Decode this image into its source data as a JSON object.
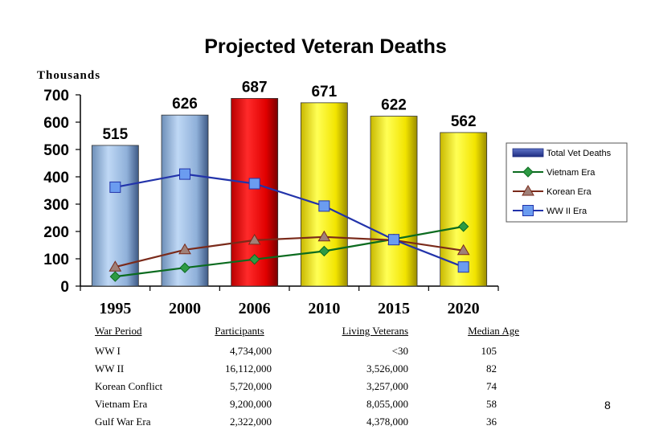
{
  "page_number": "8",
  "chart_data": {
    "type": "bar",
    "title": "Projected Veteran Deaths",
    "ylabel": "Thousands",
    "categories": [
      "1995",
      "2000",
      "2006",
      "2010",
      "2015",
      "2020"
    ],
    "ylim": [
      0,
      700
    ],
    "yticks": [
      "0",
      "100",
      "200",
      "300",
      "400",
      "500",
      "600",
      "700"
    ],
    "legend_position": "right",
    "series": [
      {
        "name": "Total Vet Deaths",
        "type": "bar",
        "values": [
          515,
          626,
          687,
          671,
          622,
          562
        ],
        "data_labels": [
          "515",
          "626",
          "687",
          "671",
          "622",
          "562"
        ],
        "bar_colors": [
          "#9fc3ea",
          "#9fc3ea",
          "#ff1a1a",
          "#ffff33",
          "#ffff33",
          "#ffff33"
        ],
        "legend_color": "#2b3f9e"
      },
      {
        "name": "Vietnam Era",
        "type": "line",
        "marker": "diamond",
        "values": [
          35,
          67,
          98,
          128,
          172,
          218
        ],
        "color": "#0b6b1f"
      },
      {
        "name": "Korean Era",
        "type": "line",
        "marker": "triangle",
        "values": [
          70,
          133,
          168,
          180,
          168,
          130
        ],
        "color": "#7a2a1a"
      },
      {
        "name": "WW II Era",
        "type": "line",
        "marker": "square",
        "values": [
          362,
          410,
          375,
          293,
          170,
          70
        ],
        "color": "#2233aa"
      }
    ]
  },
  "war_table": {
    "headers": [
      "War Period",
      "Participants",
      "Living Veterans",
      "Median Age"
    ],
    "rows": [
      [
        "WW I",
        "4,734,000",
        "<30",
        "105"
      ],
      [
        "WW II",
        "16,112,000",
        "3,526,000",
        "82"
      ],
      [
        "Korean Conflict",
        "5,720,000",
        "3,257,000",
        "74"
      ],
      [
        "Vietnam Era",
        "9,200,000",
        "8,055,000",
        "58"
      ],
      [
        "Gulf War Era",
        "2,322,000",
        "4,378,000",
        "36"
      ]
    ]
  }
}
